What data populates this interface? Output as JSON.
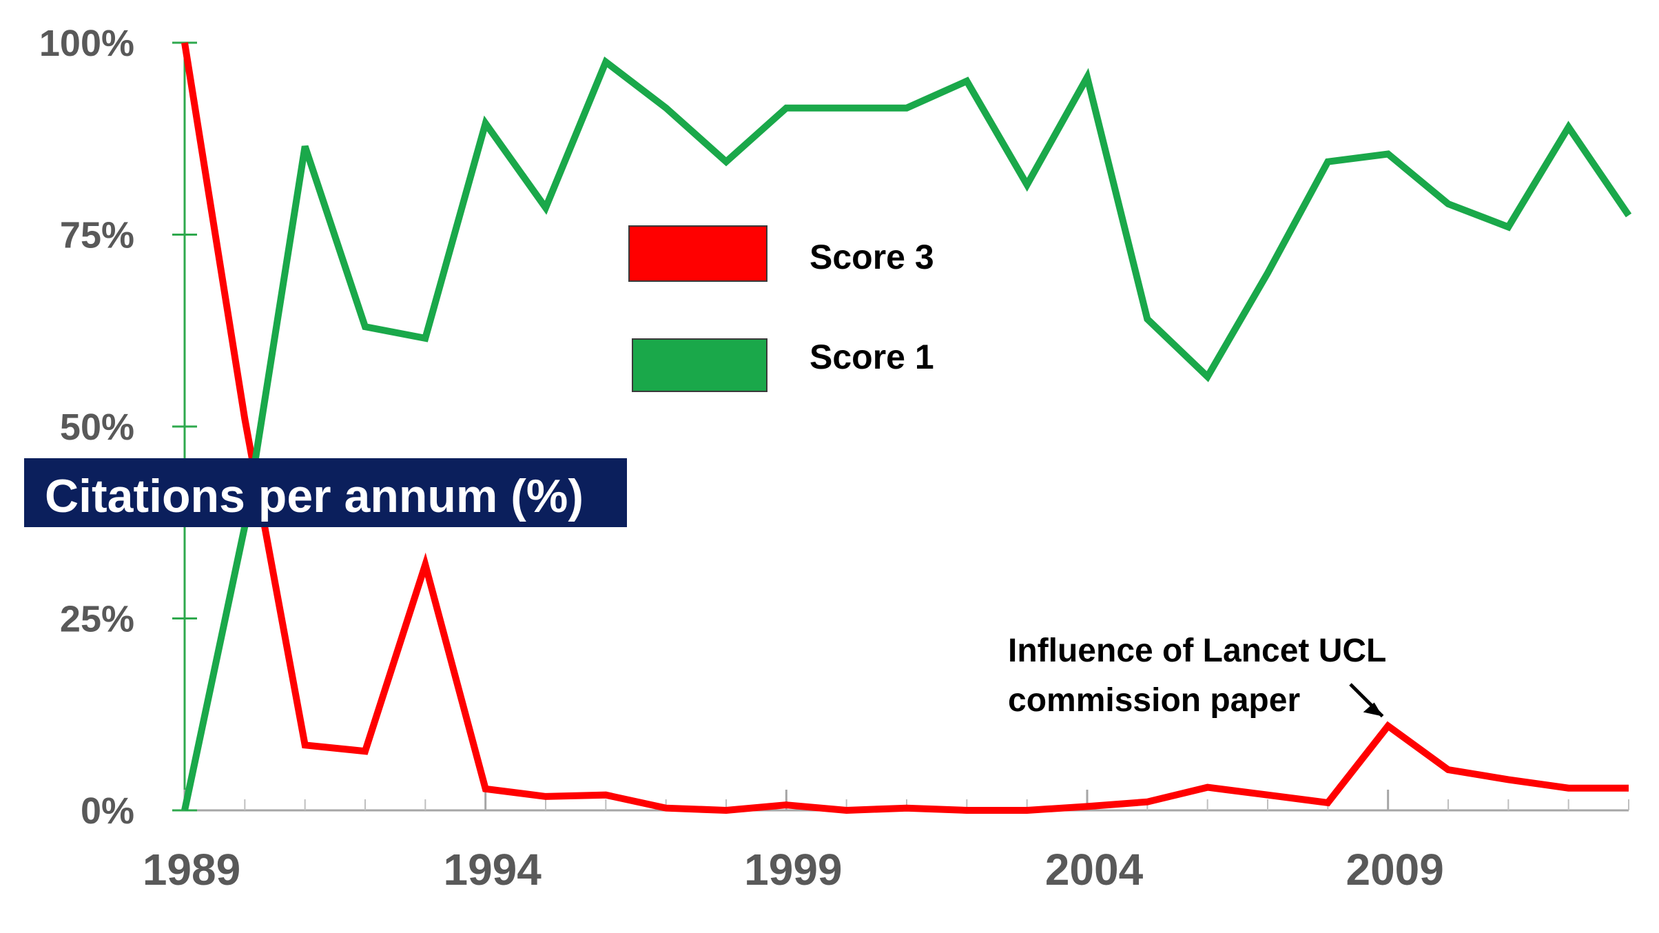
{
  "chart_data": {
    "type": "line",
    "title": "Citations per annum (%)",
    "x": [
      1989,
      1990,
      1991,
      1992,
      1993,
      1994,
      1995,
      1996,
      1997,
      1998,
      1999,
      2000,
      2001,
      2002,
      2003,
      2004,
      2005,
      2006,
      2007,
      2008,
      2009,
      2010,
      2011,
      2012,
      2013
    ],
    "xticks": [
      1989,
      1994,
      1999,
      2004,
      2009
    ],
    "xtick_labels": [
      "1989",
      "1994",
      "1999",
      "2004",
      "2009"
    ],
    "xlim": [
      1989,
      2013
    ],
    "yticks": [
      0,
      25,
      50,
      75,
      100
    ],
    "ytick_labels": [
      "0%",
      "25%",
      "50%",
      "75%",
      "100%"
    ],
    "ylim": [
      0,
      100
    ],
    "grid": false,
    "legend_position": "top-center",
    "series": [
      {
        "name": "Score 3",
        "color": "#ff0000",
        "values": [
          100,
          51,
          8.5,
          7.7,
          32,
          2.8,
          1.8,
          2.0,
          0.3,
          0,
          0.7,
          0,
          0.3,
          0,
          0,
          0.5,
          1.1,
          3.0,
          2.0,
          1.0,
          11,
          5.3,
          4.0,
          2.9,
          2.9
        ]
      },
      {
        "name": "Score 1",
        "color": "#1aa84a",
        "values": [
          0,
          37,
          86.5,
          63,
          61.5,
          89.5,
          78.5,
          97.5,
          91.5,
          84.5,
          91.5,
          91.5,
          91.5,
          95,
          81.5,
          95.5,
          64,
          56.5,
          70,
          84.5,
          85.5,
          79,
          76,
          89,
          77.5
        ]
      }
    ],
    "annotations": [
      {
        "lines": [
          "Influence of Lancet UCL",
          "commission paper"
        ],
        "points_to_x": 2009,
        "points_to_y": 11
      }
    ]
  }
}
